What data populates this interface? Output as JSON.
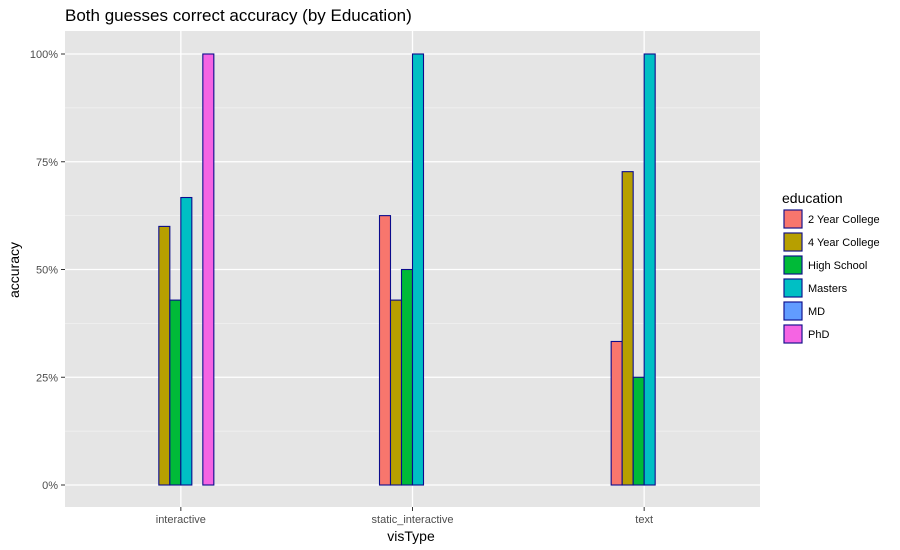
{
  "chart_data": {
    "type": "bar",
    "title": "Both guesses correct accuracy (by Education)",
    "xlabel": "visType",
    "ylabel": "accuracy",
    "ylim": [
      0,
      1
    ],
    "yticks": [
      0,
      0.25,
      0.5,
      0.75,
      1.0
    ],
    "ytick_labels": [
      "0%",
      "25%",
      "50%",
      "75%",
      "100%"
    ],
    "categories": [
      "interactive",
      "static_interactive",
      "text"
    ],
    "legend_title": "education",
    "legend_position": "right",
    "grid": true,
    "bar_outline_color": "#0b0b8c",
    "panel_background": "#e5e5e5",
    "series": [
      {
        "name": "2 Year College",
        "color": "#F8766D",
        "values": [
          0,
          0.625,
          0.333
        ]
      },
      {
        "name": "4 Year College",
        "color": "#B79F00",
        "values": [
          0.6,
          0.429,
          0.727
        ]
      },
      {
        "name": "High School",
        "color": "#00BA38",
        "values": [
          0.429,
          0.5,
          0.25
        ]
      },
      {
        "name": "Masters",
        "color": "#00BFC4",
        "values": [
          0.667,
          1.0,
          1.0
        ]
      },
      {
        "name": "MD",
        "color": "#619CFF",
        "values": [
          0,
          null,
          null
        ]
      },
      {
        "name": "PhD",
        "color": "#F564E3",
        "values": [
          1.0,
          null,
          null
        ]
      }
    ]
  }
}
